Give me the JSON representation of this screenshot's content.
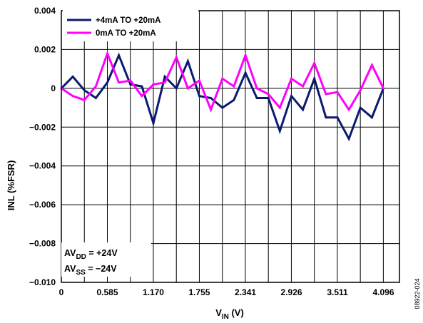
{
  "chart_data": {
    "type": "line",
    "title": "",
    "xlabel": {
      "main": "V",
      "sub": "IN",
      "unit": " (V)"
    },
    "ylabel": "INL (%FSR)",
    "xlim": [
      0,
      4.3
    ],
    "ylim": [
      -0.01,
      0.004
    ],
    "x_ticks": [
      {
        "value": 0,
        "label": "0"
      },
      {
        "value": 0.585,
        "label": "0.585"
      },
      {
        "value": 1.17,
        "label": "1.170"
      },
      {
        "value": 1.755,
        "label": "1.755"
      },
      {
        "value": 2.341,
        "label": "2.341"
      },
      {
        "value": 2.926,
        "label": "2.926"
      },
      {
        "value": 3.511,
        "label": "3.511"
      },
      {
        "value": 4.096,
        "label": "4.096"
      }
    ],
    "y_ticks": [
      {
        "value": 0.004,
        "label": "0.004"
      },
      {
        "value": 0.002,
        "label": "0.002"
      },
      {
        "value": 0,
        "label": "0"
      },
      {
        "value": -0.002,
        "label": "−0.002"
      },
      {
        "value": -0.004,
        "label": "−0.004"
      },
      {
        "value": -0.006,
        "label": "−0.006"
      },
      {
        "value": -0.008,
        "label": "−0.008"
      },
      {
        "value": -0.01,
        "label": "−0.010"
      }
    ],
    "grid": true,
    "legend_position": "top-left",
    "series": [
      {
        "name": "+4mA TO +20mA",
        "color": "#0a1a6e",
        "x": [
          0,
          0.146,
          0.293,
          0.439,
          0.585,
          0.731,
          0.878,
          1.024,
          1.17,
          1.316,
          1.463,
          1.609,
          1.755,
          1.901,
          2.048,
          2.194,
          2.341,
          2.487,
          2.633,
          2.779,
          2.926,
          3.072,
          3.218,
          3.365,
          3.511,
          3.657,
          3.803,
          3.95,
          4.096
        ],
        "y": [
          0,
          0.0006,
          -0.0001,
          -0.0005,
          0.0003,
          0.0017,
          0.0002,
          0.0001,
          -0.0018,
          0.0006,
          0.0,
          0.0014,
          -0.0004,
          -0.0005,
          -0.001,
          -0.0006,
          0.0008,
          -0.0005,
          -0.0005,
          -0.0022,
          -0.0004,
          -0.0011,
          0.0005,
          -0.0015,
          -0.0015,
          -0.0026,
          -0.001,
          -0.0015,
          0.0
        ]
      },
      {
        "name": "0mA TO +20mA",
        "color": "#ff00ff",
        "x": [
          0,
          0.146,
          0.293,
          0.439,
          0.585,
          0.731,
          0.878,
          1.024,
          1.17,
          1.316,
          1.463,
          1.609,
          1.755,
          1.901,
          2.048,
          2.194,
          2.341,
          2.487,
          2.633,
          2.779,
          2.926,
          3.072,
          3.218,
          3.365,
          3.511,
          3.657,
          3.803,
          3.95,
          4.096
        ],
        "y": [
          0,
          -0.0004,
          -0.0006,
          0.0001,
          0.0018,
          0.0003,
          0.0004,
          -0.0004,
          0.0002,
          0.0003,
          0.0016,
          0.0,
          0.0004,
          -0.0011,
          0.0005,
          0.0001,
          0.0017,
          0.0,
          -0.0003,
          -0.001,
          0.0005,
          0.0001,
          0.0013,
          -0.0003,
          -0.0002,
          -0.0011,
          -0.0001,
          0.0012,
          0.0
        ]
      }
    ],
    "annotations": [
      {
        "main": "AV",
        "sub": "DD",
        "rest": " = +24V"
      },
      {
        "main": "AV",
        "sub": "SS",
        "rest": " = −24V"
      }
    ]
  },
  "figure_id": "08922-024"
}
